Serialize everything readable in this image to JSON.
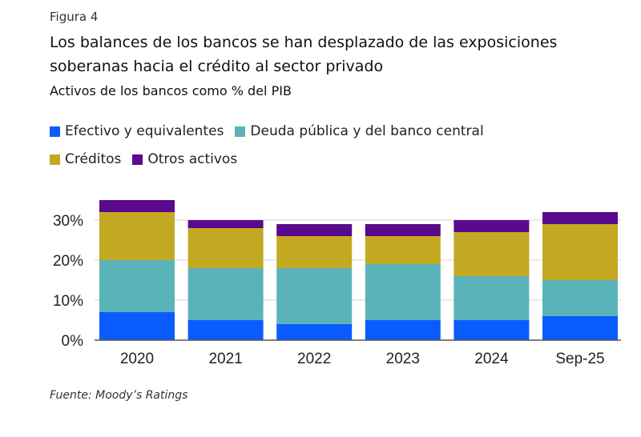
{
  "figure_label": "Figura 4",
  "title": "Los balances de los bancos se han desplazado de las exposiciones soberanas hacia el crédito al sector privado",
  "subtitle": "Activos de los bancos como % del PIB",
  "source": "Fuente: Moody’s Ratings",
  "chart_data": {
    "type": "bar",
    "stacked": true,
    "categories": [
      "2020",
      "2021",
      "2022",
      "2023",
      "2024",
      "Sep-25"
    ],
    "series": [
      {
        "name": "Efectivo y equivalentes",
        "color": "#0a5cff",
        "values": [
          7,
          5,
          4,
          5,
          5,
          6
        ]
      },
      {
        "name": "Deuda pública y del banco central",
        "color": "#5bb3ba",
        "values": [
          13,
          13,
          14,
          14,
          11,
          9
        ]
      },
      {
        "name": "Créditos",
        "color": "#c3a922",
        "values": [
          12,
          10,
          8,
          7,
          11,
          14
        ]
      },
      {
        "name": "Otros activos",
        "color": "#5a0a8c",
        "values": [
          3,
          2,
          3,
          3,
          3,
          3
        ]
      }
    ],
    "yticks": [
      "0%",
      "10%",
      "20%",
      "30%"
    ],
    "ylim": [
      0,
      35
    ],
    "grid": true,
    "legend_position": "top"
  }
}
